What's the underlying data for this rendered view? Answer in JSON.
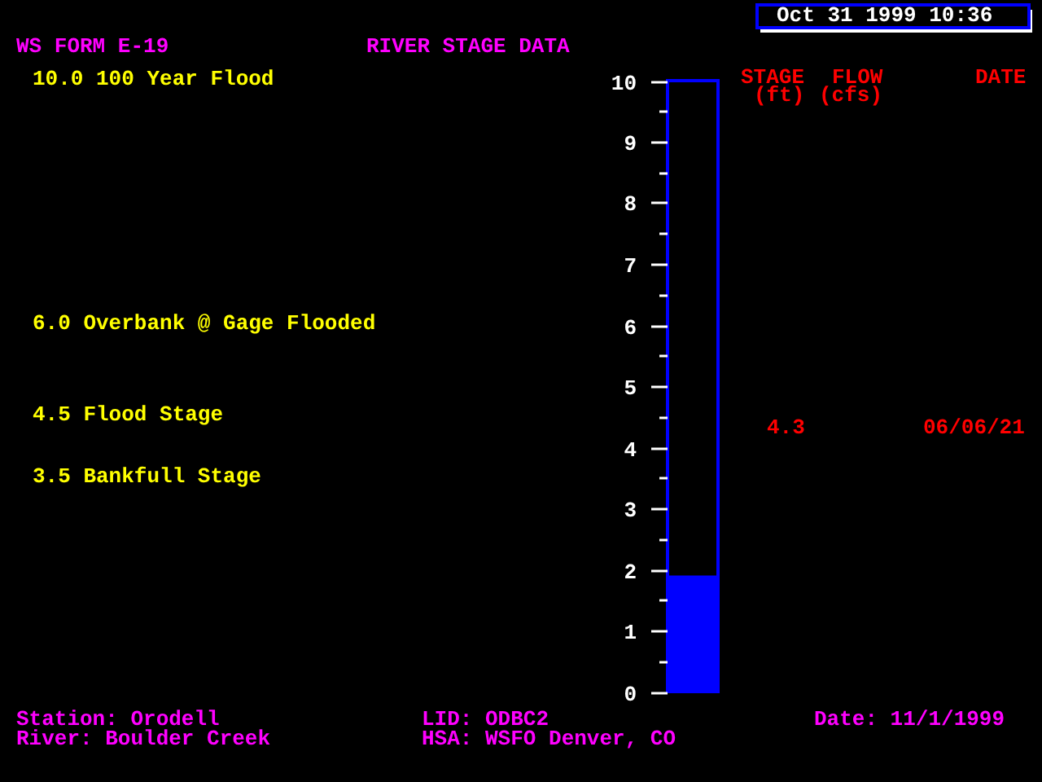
{
  "chart_data": {
    "type": "bar",
    "title": "RIVER STAGE DATA",
    "subtitle": "WS FORM E-19",
    "categories": [
      null
    ],
    "values": [
      1.9
    ],
    "color": "#0000ff",
    "ylim": [
      0,
      10
    ],
    "yticks": [
      0,
      {
        "value": 0.5,
        "label": null
      },
      1,
      {
        "value": 1.5,
        "label": null
      },
      2,
      {
        "value": 2.5,
        "label": null
      },
      3,
      {
        "value": 3.5,
        "label": null
      },
      4,
      {
        "value": 4.5,
        "label": null
      },
      5,
      {
        "value": 5.5,
        "label": null
      },
      6,
      {
        "value": 6.5,
        "label": null
      },
      7,
      {
        "value": 7.5,
        "label": null
      },
      8,
      {
        "value": 8.5,
        "label": null
      },
      9,
      {
        "value": 9.5,
        "label": null
      },
      10
    ],
    "annotations": [
      "Oct 31 1999 10:36",
      "10.0 100 Year Flood",
      "6.0 Overbank @ Gage Flooded",
      "4.5 Flood Stage",
      "3.5 Bankfull Stage",
      "STAGE",
      "FLOW",
      "DATE",
      "(ft)",
      "(cfs)",
      "4.3",
      "06/06/21",
      "Station: Orodell",
      "River: Boulder Creek",
      "LID: ODBC2",
      "HSA: WSFO Denver, CO",
      "Date: 11/1/1999"
    ]
  }
}
